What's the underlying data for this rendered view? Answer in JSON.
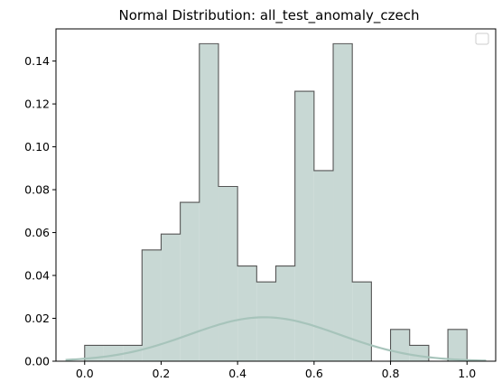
{
  "chart_data": {
    "type": "bar",
    "title": "Normal Distribution: all_test_anomaly_czech",
    "xlabel": "",
    "ylabel": "",
    "xlim": [
      -0.075,
      1.075
    ],
    "ylim": [
      0,
      0.155
    ],
    "xticks": [
      0.0,
      0.2,
      0.4,
      0.6,
      0.8,
      1.0
    ],
    "xtick_labels": [
      "0.0",
      "0.2",
      "0.4",
      "0.6",
      "0.8",
      "1.0"
    ],
    "yticks": [
      0.0,
      0.02,
      0.04,
      0.06,
      0.08,
      0.1,
      0.12,
      0.14
    ],
    "ytick_labels": [
      "0.00",
      "0.02",
      "0.04",
      "0.06",
      "0.08",
      "0.10",
      "0.12",
      "0.14"
    ],
    "bin_width": 0.05,
    "bins": [
      {
        "x0": 0.0,
        "x1": 0.05,
        "value": 0.0074
      },
      {
        "x0": 0.05,
        "x1": 0.1,
        "value": 0.0074
      },
      {
        "x0": 0.1,
        "x1": 0.15,
        "value": 0.0074
      },
      {
        "x0": 0.15,
        "x1": 0.2,
        "value": 0.0519
      },
      {
        "x0": 0.2,
        "x1": 0.25,
        "value": 0.0593
      },
      {
        "x0": 0.25,
        "x1": 0.3,
        "value": 0.0741
      },
      {
        "x0": 0.3,
        "x1": 0.35,
        "value": 0.1481
      },
      {
        "x0": 0.35,
        "x1": 0.4,
        "value": 0.0815
      },
      {
        "x0": 0.4,
        "x1": 0.45,
        "value": 0.0444
      },
      {
        "x0": 0.45,
        "x1": 0.5,
        "value": 0.037
      },
      {
        "x0": 0.5,
        "x1": 0.55,
        "value": 0.0444
      },
      {
        "x0": 0.55,
        "x1": 0.6,
        "value": 0.1259
      },
      {
        "x0": 0.6,
        "x1": 0.65,
        "value": 0.0889
      },
      {
        "x0": 0.65,
        "x1": 0.7,
        "value": 0.1481
      },
      {
        "x0": 0.7,
        "x1": 0.75,
        "value": 0.037
      },
      {
        "x0": 0.75,
        "x1": 0.8,
        "value": 0.0
      },
      {
        "x0": 0.8,
        "x1": 0.85,
        "value": 0.0148
      },
      {
        "x0": 0.85,
        "x1": 0.9,
        "value": 0.0074
      },
      {
        "x0": 0.9,
        "x1": 0.95,
        "value": 0.0
      },
      {
        "x0": 0.95,
        "x1": 1.0,
        "value": 0.0148
      }
    ],
    "curve": {
      "mean": 0.47,
      "std": 0.196,
      "scale": 0.01,
      "x_range": [
        -0.05,
        1.05
      ]
    },
    "grid": false,
    "legend": "top-right",
    "colors": {
      "bar_fill": "#c8d8d4",
      "bar_edge": "#555555",
      "curve": "#a7c4bb",
      "axis": "#000000"
    }
  }
}
